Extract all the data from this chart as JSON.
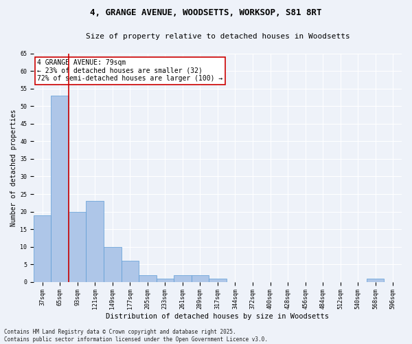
{
  "title_line1": "4, GRANGE AVENUE, WOODSETTS, WORKSOP, S81 8RT",
  "title_line2": "Size of property relative to detached houses in Woodsetts",
  "xlabel": "Distribution of detached houses by size in Woodsetts",
  "ylabel": "Number of detached properties",
  "categories": [
    "37sqm",
    "65sqm",
    "93sqm",
    "121sqm",
    "149sqm",
    "177sqm",
    "205sqm",
    "233sqm",
    "261sqm",
    "289sqm",
    "317sqm",
    "344sqm",
    "372sqm",
    "400sqm",
    "428sqm",
    "456sqm",
    "484sqm",
    "512sqm",
    "540sqm",
    "568sqm",
    "596sqm"
  ],
  "values": [
    19,
    53,
    20,
    23,
    10,
    6,
    2,
    1,
    2,
    2,
    1,
    0,
    0,
    0,
    0,
    0,
    0,
    0,
    0,
    1,
    0
  ],
  "bar_color": "#aec6e8",
  "bar_edge_color": "#5b9bd5",
  "ylim": [
    0,
    65
  ],
  "yticks": [
    0,
    5,
    10,
    15,
    20,
    25,
    30,
    35,
    40,
    45,
    50,
    55,
    60,
    65
  ],
  "vline_x": 1.5,
  "annotation_box_text": "4 GRANGE AVENUE: 79sqm\n← 23% of detached houses are smaller (32)\n72% of semi-detached houses are larger (100) →",
  "annotation_box_facecolor": "#ffffff",
  "annotation_box_edgecolor": "#cc0000",
  "vline_color": "#cc0000",
  "footer_line1": "Contains HM Land Registry data © Crown copyright and database right 2025.",
  "footer_line2": "Contains public sector information licensed under the Open Government Licence v3.0.",
  "background_color": "#eef2f9",
  "grid_color": "#ffffff",
  "title1_fontsize": 9,
  "title2_fontsize": 8,
  "ylabel_fontsize": 7,
  "xlabel_fontsize": 7.5,
  "tick_fontsize": 6,
  "annot_fontsize": 7,
  "footer_fontsize": 5.5
}
